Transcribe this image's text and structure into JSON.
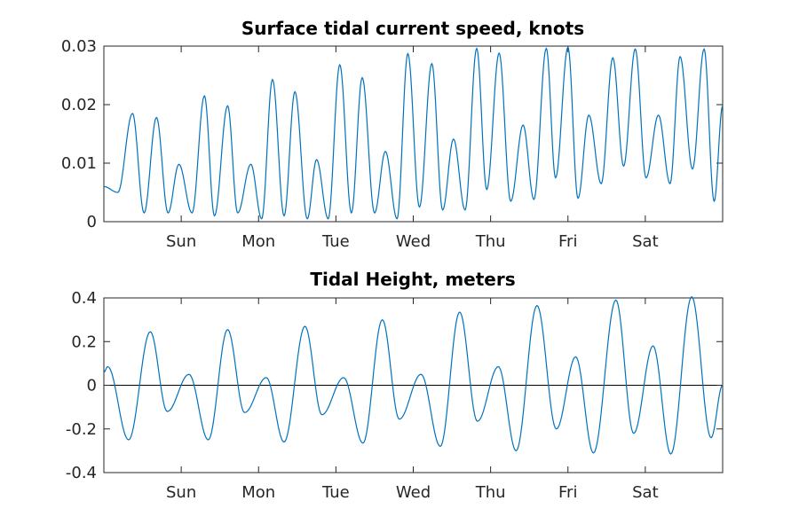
{
  "chart_data": [
    {
      "type": "line",
      "title": "Surface tidal current speed, knots",
      "xlabel": "",
      "ylabel": "",
      "xlim": [
        0,
        8
      ],
      "ylim": [
        0,
        0.03
      ],
      "yticks": [
        0,
        0.01,
        0.02,
        0.03
      ],
      "ytick_labels": [
        "0",
        "0.01",
        "0.02",
        "0.03"
      ],
      "xticks": [
        1,
        2,
        3,
        4,
        5,
        6,
        7
      ],
      "xtick_labels": [
        "Sun",
        "Mon",
        "Tue",
        "Wed",
        "Thu",
        "Fri",
        "Sat"
      ],
      "grid": false,
      "color": "#0072BD",
      "series": [
        {
          "x": [
            0,
            0.18,
            0.37,
            0.52,
            0.68,
            0.83,
            0.97,
            1.14,
            1.3,
            1.43,
            1.6,
            1.73,
            1.9,
            2.04,
            2.18,
            2.33,
            2.47,
            2.63,
            2.75,
            2.9,
            3.05,
            3.2,
            3.34,
            3.5,
            3.64,
            3.79,
            3.93,
            4.08,
            4.24,
            4.38,
            4.52,
            4.67,
            4.82,
            4.95,
            5.11,
            5.26,
            5.42,
            5.56,
            5.72,
            5.84,
            6.0,
            6.13,
            6.27,
            6.43,
            6.58,
            6.72,
            6.87,
            7.01,
            7.17,
            7.32,
            7.45,
            7.61,
            7.76,
            7.89,
            8.0
          ],
          "y": [
            0.006,
            0.005,
            0.0185,
            0.0015,
            0.0178,
            0.0015,
            0.0098,
            0.0015,
            0.0215,
            0.001,
            0.0198,
            0.0015,
            0.0098,
            0.0005,
            0.0243,
            0.001,
            0.0222,
            0.0005,
            0.0106,
            0.0005,
            0.0268,
            0.0015,
            0.0246,
            0.0015,
            0.012,
            0.0005,
            0.0287,
            0.0025,
            0.027,
            0.002,
            0.0141,
            0.002,
            0.0296,
            0.0055,
            0.0288,
            0.0035,
            0.0165,
            0.0038,
            0.0296,
            0.0075,
            0.0298,
            0.004,
            0.0182,
            0.0065,
            0.028,
            0.0095,
            0.0295,
            0.0075,
            0.0182,
            0.0065,
            0.0282,
            0.009,
            0.0295,
            0.0035,
            0.0198
          ]
        }
      ]
    },
    {
      "type": "line",
      "title": "Tidal Height, meters",
      "xlabel": "",
      "ylabel": "",
      "xlim": [
        0,
        8
      ],
      "ylim": [
        -0.4,
        0.4
      ],
      "yticks": [
        -0.4,
        -0.2,
        0,
        0.2,
        0.4
      ],
      "ytick_labels": [
        "-0.4",
        "-0.2",
        "0",
        "0.2",
        "0.4"
      ],
      "xticks": [
        1,
        2,
        3,
        4,
        5,
        6,
        7
      ],
      "xtick_labels": [
        "Sun",
        "Mon",
        "Tue",
        "Wed",
        "Thu",
        "Fri",
        "Sat"
      ],
      "grid": false,
      "zero_line": true,
      "color": "#0072BD",
      "series": [
        {
          "x": [
            0,
            0.05,
            0.32,
            0.6,
            0.82,
            1.1,
            1.35,
            1.6,
            1.82,
            2.1,
            2.33,
            2.6,
            2.82,
            3.1,
            3.35,
            3.6,
            3.82,
            4.1,
            4.35,
            4.6,
            4.83,
            5.1,
            5.33,
            5.6,
            5.85,
            6.1,
            6.33,
            6.62,
            6.85,
            7.1,
            7.33,
            7.6,
            7.85,
            8.0
          ],
          "y": [
            0.06,
            0.085,
            -0.25,
            0.245,
            -0.12,
            0.05,
            -0.25,
            0.255,
            -0.125,
            0.035,
            -0.26,
            0.27,
            -0.135,
            0.035,
            -0.265,
            0.3,
            -0.155,
            0.05,
            -0.28,
            0.335,
            -0.165,
            0.085,
            -0.3,
            0.365,
            -0.2,
            0.13,
            -0.31,
            0.39,
            -0.22,
            0.18,
            -0.315,
            0.405,
            -0.24,
            0.0
          ]
        }
      ]
    }
  ]
}
